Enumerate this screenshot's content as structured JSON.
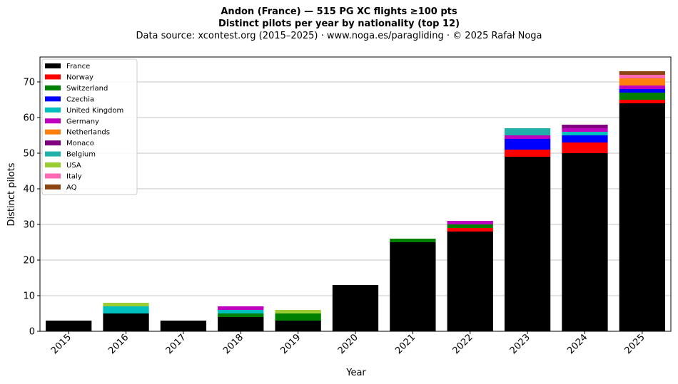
{
  "chart_data": {
    "type": "bar",
    "stacked": true,
    "title": "Andon (France)  —  515 PG XC flights ≥100 pts",
    "subtitle": "Distinct pilots per year by nationality (top 12)",
    "source": "Data source: xcontest.org (2015–2025)  ·  www.noga.es/paragliding  ·  © 2025 Rafał Noga",
    "xlabel": "Year",
    "ylabel": "Distinct pilots",
    "ylim": [
      0,
      77
    ],
    "yticks": [
      0,
      10,
      20,
      30,
      40,
      50,
      60,
      70
    ],
    "grid": "horizontal",
    "legend_position": "top-left",
    "categories": [
      "2015",
      "2016",
      "2017",
      "2018",
      "2019",
      "2020",
      "2021",
      "2022",
      "2023",
      "2024",
      "2025"
    ],
    "series": [
      {
        "name": "France",
        "color": "#000000",
        "values": [
          3,
          5,
          3,
          4,
          3,
          13,
          25,
          28,
          49,
          50,
          64
        ]
      },
      {
        "name": "Norway",
        "color": "#ff0000",
        "values": [
          0,
          0,
          0,
          0,
          0,
          0,
          0,
          1,
          2,
          3,
          1
        ]
      },
      {
        "name": "Switzerland",
        "color": "#008000",
        "values": [
          0,
          0,
          0,
          1,
          2,
          0,
          1,
          1,
          0,
          0,
          2
        ]
      },
      {
        "name": "Czechia",
        "color": "#0000ff",
        "values": [
          0,
          0,
          0,
          0,
          0,
          0,
          0,
          0,
          3,
          2,
          1
        ]
      },
      {
        "name": "United Kingdom",
        "color": "#00bfbf",
        "values": [
          0,
          2,
          0,
          1,
          0,
          0,
          0,
          0,
          0,
          1,
          0
        ]
      },
      {
        "name": "Germany",
        "color": "#bf00bf",
        "values": [
          0,
          0,
          0,
          1,
          0,
          0,
          0,
          1,
          1,
          1,
          1
        ]
      },
      {
        "name": "Netherlands",
        "color": "#ff7f0e",
        "values": [
          0,
          0,
          0,
          0,
          0,
          0,
          0,
          0,
          0,
          0,
          2
        ]
      },
      {
        "name": "Monaco",
        "color": "#800080",
        "values": [
          0,
          0,
          0,
          0,
          0,
          0,
          0,
          0,
          0,
          1,
          0
        ]
      },
      {
        "name": "Belgium",
        "color": "#20b2aa",
        "values": [
          0,
          0,
          0,
          0,
          0,
          0,
          0,
          0,
          2,
          0,
          0
        ]
      },
      {
        "name": "USA",
        "color": "#9acd32",
        "values": [
          0,
          1,
          0,
          0,
          1,
          0,
          0,
          0,
          0,
          0,
          0
        ]
      },
      {
        "name": "Italy",
        "color": "#ff69b4",
        "values": [
          0,
          0,
          0,
          0,
          0,
          0,
          0,
          0,
          0,
          0,
          1
        ]
      },
      {
        "name": "AQ",
        "color": "#8b4513",
        "values": [
          0,
          0,
          0,
          0,
          0,
          0,
          0,
          0,
          0,
          0,
          1
        ]
      }
    ]
  }
}
